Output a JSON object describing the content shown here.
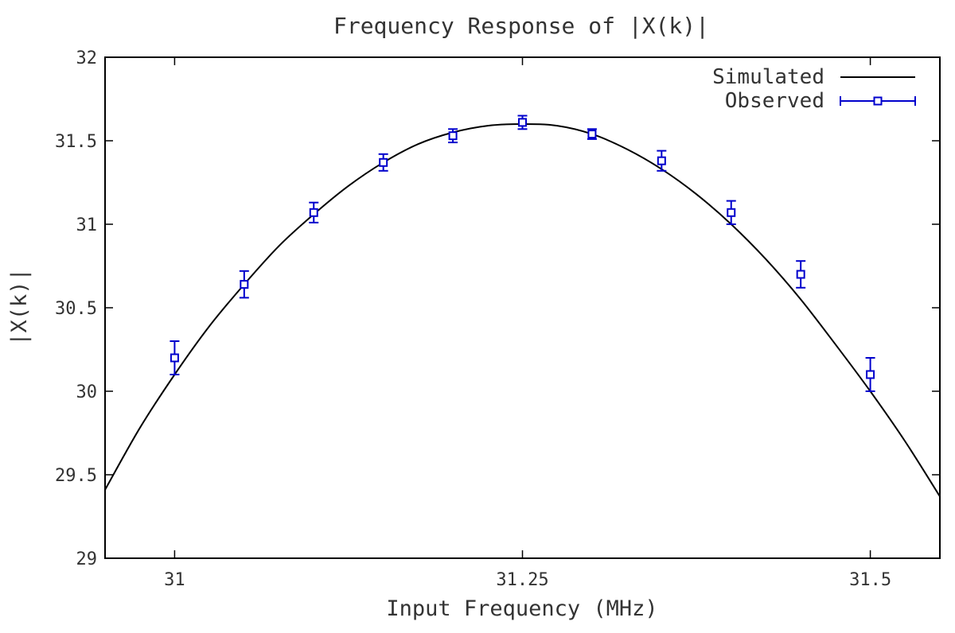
{
  "chart_data": {
    "type": "line",
    "title": "Frequency Response of |X(k)|",
    "xlabel": "Input Frequency (MHz)",
    "ylabel": "|X(k)|",
    "xlim": [
      30.95,
      31.55
    ],
    "ylim": [
      29,
      32
    ],
    "x_ticks": [
      31,
      31.25,
      31.5
    ],
    "x_tick_labels": [
      "31",
      "31.25",
      "31.5"
    ],
    "y_ticks": [
      29,
      29.5,
      30,
      30.5,
      31,
      31.5,
      32
    ],
    "y_tick_labels": [
      "29",
      "29.5",
      "30",
      "30.5",
      "31",
      "31.5",
      "32"
    ],
    "grid": false,
    "legend_position": "top-right",
    "series": [
      {
        "name": "Simulated",
        "style": "line",
        "color": "#000000",
        "x": [
          30.95,
          30.975,
          31.0,
          31.025,
          31.05,
          31.075,
          31.1,
          31.125,
          31.15,
          31.175,
          31.2,
          31.225,
          31.25,
          31.275,
          31.3,
          31.325,
          31.35,
          31.375,
          31.4,
          31.425,
          31.45,
          31.475,
          31.5,
          31.525,
          31.55
        ],
        "y": [
          29.41,
          29.78,
          30.1,
          30.39,
          30.64,
          30.87,
          31.06,
          31.23,
          31.37,
          31.48,
          31.55,
          31.59,
          31.6,
          31.59,
          31.54,
          31.45,
          31.33,
          31.18,
          31.0,
          30.79,
          30.55,
          30.28,
          30.0,
          29.7,
          29.37
        ]
      },
      {
        "name": "Observed",
        "style": "errorbar",
        "color": "#0000cc",
        "x": [
          31.0,
          31.05,
          31.1,
          31.15,
          31.2,
          31.25,
          31.3,
          31.35,
          31.4,
          31.45,
          31.5
        ],
        "y": [
          30.2,
          30.64,
          31.07,
          31.37,
          31.53,
          31.61,
          31.54,
          31.38,
          31.07,
          30.7,
          30.1
        ],
        "yerr": [
          0.1,
          0.08,
          0.06,
          0.05,
          0.04,
          0.04,
          0.03,
          0.06,
          0.07,
          0.08,
          0.1
        ]
      }
    ]
  }
}
